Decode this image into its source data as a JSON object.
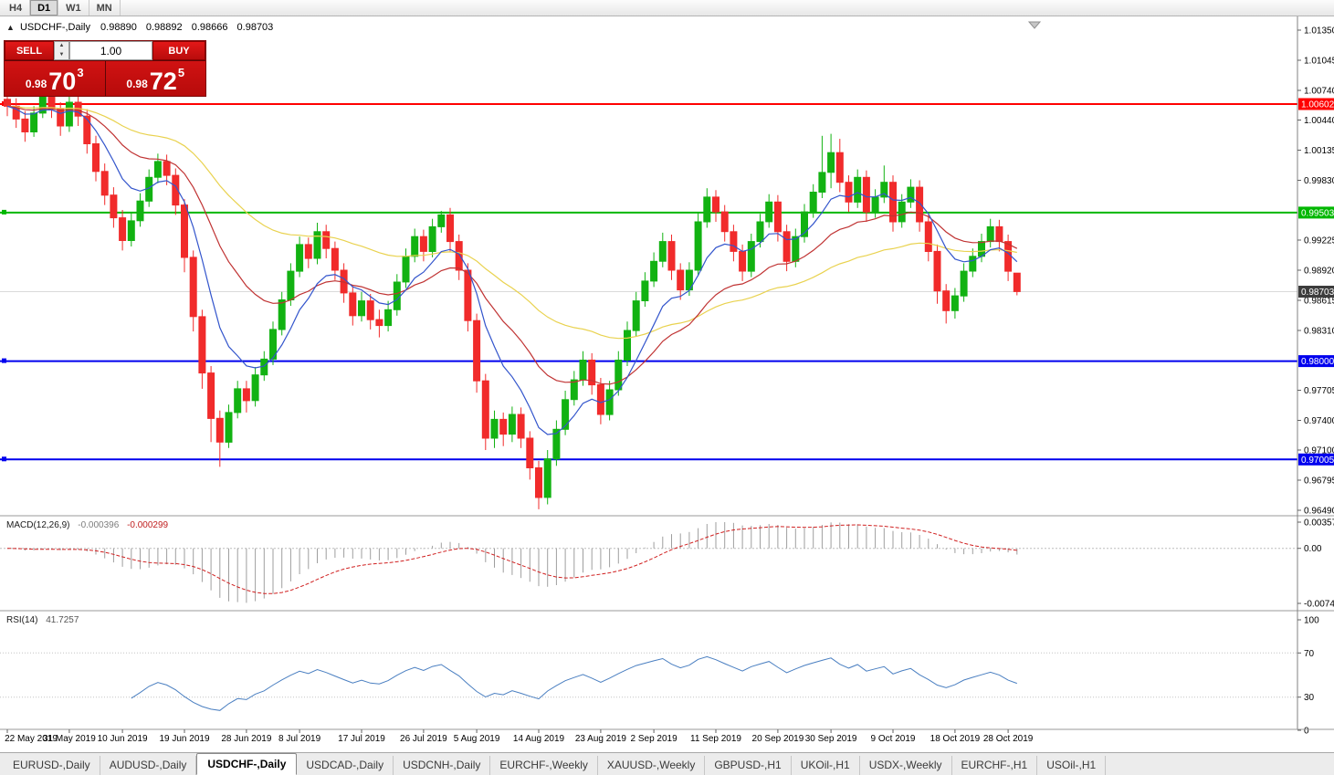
{
  "window": {
    "timeframes": [
      "H4",
      "D1",
      "W1",
      "MN"
    ],
    "active_timeframe": "D1"
  },
  "chart": {
    "title": "USDCHF-,Daily",
    "ohlc": {
      "open": "0.98890",
      "high": "0.98892",
      "low": "0.98666",
      "close": "0.98703"
    }
  },
  "trade_widget": {
    "sell_label": "SELL",
    "buy_label": "BUY",
    "volume": "1.00",
    "sell_price": {
      "small": "0.98",
      "big": "70",
      "sup": "3"
    },
    "buy_price": {
      "small": "0.98",
      "big": "72",
      "sup": "5"
    }
  },
  "levels": [
    {
      "price": 1.00602,
      "label": "1.00602",
      "color": "#ff0000"
    },
    {
      "price": 0.99503,
      "label": "0.99503",
      "color": "#00b700"
    },
    {
      "price": 0.98,
      "label": "0.98000",
      "color": "#0000ee"
    },
    {
      "price": 0.97005,
      "label": "0.97005",
      "color": "#0000ee"
    }
  ],
  "current_price": {
    "value": 0.98703,
    "label": "0.98703",
    "badge_color": "#3c3c3c"
  },
  "price_axis": {
    "ticks": [
      "1.01350",
      "1.01045",
      "1.00740",
      "1.00440",
      "1.00135",
      "0.99830",
      "0.99225",
      "0.98920",
      "0.98615",
      "0.98310",
      "0.97705",
      "0.97400",
      "0.97100",
      "0.96795",
      "0.96490"
    ]
  },
  "macd_panel": {
    "label": "MACD(12,26,9)",
    "value_main": "-0.000396",
    "value_signal": "-0.000299",
    "axis": [
      "0.003574",
      "0.00",
      "-0.00749"
    ],
    "scale_max": 0.003574,
    "scale_min": -0.00749,
    "fast": 12,
    "slow": 26,
    "signal": 9
  },
  "rsi_panel": {
    "label": "RSI(14)",
    "value": "41.7257",
    "axis": [
      "100",
      "70",
      "30",
      "0"
    ],
    "levels": [
      70,
      30
    ],
    "period": 14
  },
  "time_axis": {
    "labels": [
      {
        "text": "22 May 2019",
        "bar": 0
      },
      {
        "text": "31 May 2019",
        "bar": 7
      },
      {
        "text": "10 Jun 2019",
        "bar": 13
      },
      {
        "text": "19 Jun 2019",
        "bar": 20
      },
      {
        "text": "28 Jun 2019",
        "bar": 27
      },
      {
        "text": "8 Jul 2019",
        "bar": 33
      },
      {
        "text": "17 Jul 2019",
        "bar": 40
      },
      {
        "text": "26 Jul 2019",
        "bar": 47
      },
      {
        "text": "5 Aug 2019",
        "bar": 53
      },
      {
        "text": "14 Aug 2019",
        "bar": 60
      },
      {
        "text": "23 Aug 2019",
        "bar": 67
      },
      {
        "text": "2 Sep 2019",
        "bar": 73
      },
      {
        "text": "11 Sep 2019",
        "bar": 80
      },
      {
        "text": "20 Sep 2019",
        "bar": 87
      },
      {
        "text": "30 Sep 2019",
        "bar": 93
      },
      {
        "text": "9 Oct 2019",
        "bar": 100
      },
      {
        "text": "18 Oct 2019",
        "bar": 107
      },
      {
        "text": "28 Oct 2019",
        "bar": 113
      }
    ]
  },
  "tabs": [
    {
      "label": "EURUSD-,Daily",
      "active": false
    },
    {
      "label": "AUDUSD-,Daily",
      "active": false
    },
    {
      "label": "USDCHF-,Daily",
      "active": true
    },
    {
      "label": "USDCAD-,Daily",
      "active": false
    },
    {
      "label": "USDCNH-,Daily",
      "active": false
    },
    {
      "label": "EURCHF-,Weekly",
      "active": false
    },
    {
      "label": "XAUUSD-,Weekly",
      "active": false
    },
    {
      "label": "GBPUSD-,H1",
      "active": false
    },
    {
      "label": "UKOil-,H1",
      "active": false
    },
    {
      "label": "USDX-,Weekly",
      "active": false
    },
    {
      "label": "EURCHF-,H1",
      "active": false
    },
    {
      "label": "USOil-,H1",
      "active": false
    }
  ],
  "chart_data": {
    "type": "candlestick",
    "symbol": "USDCHF",
    "timeframe": "Daily",
    "price_range": [
      0.9649,
      1.0135
    ],
    "colors": {
      "bull": "#12b212",
      "bear": "#f12b2b",
      "ma_fast": "#3355cc",
      "ma_mid": "#c03333",
      "ma_slow": "#e9d24f"
    },
    "overlays": [
      {
        "type": "ema",
        "period": 45,
        "color": "#e9d24f"
      },
      {
        "type": "ema",
        "period": 20,
        "color": "#c03333"
      },
      {
        "type": "ema",
        "period": 8,
        "color": "#3355cc"
      }
    ],
    "candles": [
      [
        1.0065,
        1.0072,
        1.0048,
        1.0058
      ],
      [
        1.0058,
        1.0066,
        1.0036,
        1.0045
      ],
      [
        1.0045,
        1.0053,
        1.0022,
        1.0032
      ],
      [
        1.0032,
        1.0058,
        1.0027,
        1.0051
      ],
      [
        1.0051,
        1.0078,
        1.0046,
        1.0068
      ],
      [
        1.0068,
        1.0076,
        1.0046,
        1.0055
      ],
      [
        1.0055,
        1.0062,
        1.0028,
        1.0038
      ],
      [
        1.0038,
        1.007,
        1.0032,
        1.0062
      ],
      [
        1.0062,
        1.007,
        1.0038,
        1.0048
      ],
      [
        1.0048,
        1.0055,
        1.001,
        1.002
      ],
      [
        1.002,
        1.0028,
        0.9982,
        0.9992
      ],
      [
        0.9992,
        1.0,
        0.9958,
        0.9968
      ],
      [
        0.9968,
        0.9976,
        0.9935,
        0.9945
      ],
      [
        0.9945,
        0.9953,
        0.9912,
        0.9922
      ],
      [
        0.9922,
        0.995,
        0.9916,
        0.9942
      ],
      [
        0.9942,
        0.997,
        0.9936,
        0.9962
      ],
      [
        0.9962,
        0.9994,
        0.9956,
        0.9986
      ],
      [
        0.9986,
        1.001,
        0.998,
        1.0002
      ],
      [
        1.0002,
        1.0009,
        0.9978,
        0.9988
      ],
      [
        0.9988,
        0.9995,
        0.9948,
        0.9958
      ],
      [
        0.9958,
        0.9964,
        0.989,
        0.9905
      ],
      [
        0.9905,
        0.9912,
        0.983,
        0.9845
      ],
      [
        0.9845,
        0.9852,
        0.9772,
        0.9788
      ],
      [
        0.9788,
        0.9795,
        0.9718,
        0.9742
      ],
      [
        0.9742,
        0.975,
        0.9693,
        0.9718
      ],
      [
        0.9718,
        0.9756,
        0.9712,
        0.9748
      ],
      [
        0.9748,
        0.978,
        0.9742,
        0.9772
      ],
      [
        0.9772,
        0.978,
        0.9748,
        0.976
      ],
      [
        0.976,
        0.9794,
        0.9754,
        0.9786
      ],
      [
        0.9786,
        0.981,
        0.978,
        0.9802
      ],
      [
        0.9802,
        0.984,
        0.9796,
        0.9832
      ],
      [
        0.9832,
        0.987,
        0.9826,
        0.9862
      ],
      [
        0.9862,
        0.9899,
        0.9856,
        0.9891
      ],
      [
        0.9891,
        0.9926,
        0.9885,
        0.9918
      ],
      [
        0.9918,
        0.9925,
        0.9894,
        0.9904
      ],
      [
        0.9904,
        0.994,
        0.9898,
        0.9931
      ],
      [
        0.9931,
        0.9938,
        0.9904,
        0.9914
      ],
      [
        0.9914,
        0.9921,
        0.9882,
        0.9892
      ],
      [
        0.9892,
        0.9899,
        0.9859,
        0.9869
      ],
      [
        0.9869,
        0.9876,
        0.9836,
        0.9846
      ],
      [
        0.9846,
        0.987,
        0.984,
        0.9861
      ],
      [
        0.9861,
        0.9868,
        0.9832,
        0.9842
      ],
      [
        0.9842,
        0.9852,
        0.9824,
        0.9836
      ],
      [
        0.9836,
        0.9861,
        0.983,
        0.9852
      ],
      [
        0.9852,
        0.9888,
        0.9846,
        0.988
      ],
      [
        0.988,
        0.9914,
        0.9874,
        0.9906
      ],
      [
        0.9906,
        0.9934,
        0.99,
        0.9926
      ],
      [
        0.9926,
        0.9933,
        0.9901,
        0.9911
      ],
      [
        0.9911,
        0.9944,
        0.9905,
        0.9936
      ],
      [
        0.9936,
        0.9952,
        0.993,
        0.9948
      ],
      [
        0.9948,
        0.9955,
        0.9911,
        0.9921
      ],
      [
        0.9921,
        0.9928,
        0.9882,
        0.9892
      ],
      [
        0.9892,
        0.9899,
        0.983,
        0.9841
      ],
      [
        0.9841,
        0.9848,
        0.9768,
        0.978
      ],
      [
        0.978,
        0.9787,
        0.971,
        0.9722
      ],
      [
        0.9722,
        0.975,
        0.9712,
        0.9741
      ],
      [
        0.9741,
        0.9748,
        0.9714,
        0.9726
      ],
      [
        0.9726,
        0.9754,
        0.9718,
        0.9746
      ],
      [
        0.9746,
        0.9753,
        0.9712,
        0.9722
      ],
      [
        0.9722,
        0.9729,
        0.968,
        0.9692
      ],
      [
        0.9692,
        0.9699,
        0.965,
        0.9662
      ],
      [
        0.9662,
        0.971,
        0.9655,
        0.9701
      ],
      [
        0.9701,
        0.974,
        0.9694,
        0.9731
      ],
      [
        0.9731,
        0.977,
        0.9725,
        0.9761
      ],
      [
        0.9761,
        0.979,
        0.9755,
        0.9781
      ],
      [
        0.9781,
        0.981,
        0.9775,
        0.9801
      ],
      [
        0.9801,
        0.9808,
        0.9766,
        0.9776
      ],
      [
        0.9776,
        0.9783,
        0.9736,
        0.9746
      ],
      [
        0.9746,
        0.978,
        0.974,
        0.9771
      ],
      [
        0.9771,
        0.981,
        0.9765,
        0.9801
      ],
      [
        0.9801,
        0.984,
        0.9795,
        0.9831
      ],
      [
        0.9831,
        0.987,
        0.9825,
        0.9861
      ],
      [
        0.9861,
        0.989,
        0.9855,
        0.9881
      ],
      [
        0.9881,
        0.991,
        0.9875,
        0.9901
      ],
      [
        0.9901,
        0.993,
        0.9895,
        0.9921
      ],
      [
        0.9921,
        0.9928,
        0.9882,
        0.9892
      ],
      [
        0.9892,
        0.9899,
        0.9862,
        0.9872
      ],
      [
        0.9872,
        0.99,
        0.9866,
        0.9892
      ],
      [
        0.9892,
        0.995,
        0.9886,
        0.9941
      ],
      [
        0.9941,
        0.9975,
        0.9935,
        0.9966
      ],
      [
        0.9966,
        0.9973,
        0.9941,
        0.9951
      ],
      [
        0.9951,
        0.9958,
        0.9921,
        0.9931
      ],
      [
        0.9931,
        0.9938,
        0.9901,
        0.9911
      ],
      [
        0.9911,
        0.9918,
        0.9881,
        0.9891
      ],
      [
        0.9891,
        0.9929,
        0.9885,
        0.9921
      ],
      [
        0.9921,
        0.9949,
        0.9915,
        0.9941
      ],
      [
        0.9941,
        0.9969,
        0.9935,
        0.9961
      ],
      [
        0.9961,
        0.9968,
        0.9921,
        0.9931
      ],
      [
        0.9931,
        0.9938,
        0.9891,
        0.9901
      ],
      [
        0.9901,
        0.9934,
        0.9895,
        0.9926
      ],
      [
        0.9926,
        0.9959,
        0.992,
        0.9951
      ],
      [
        0.9951,
        0.9979,
        0.9945,
        0.9971
      ],
      [
        0.9971,
        1.0028,
        0.9965,
        0.9991
      ],
      [
        0.9991,
        1.003,
        0.9975,
        1.0011
      ],
      [
        1.0011,
        1.0025,
        0.9971,
        0.9981
      ],
      [
        0.9981,
        0.9988,
        0.9951,
        0.9961
      ],
      [
        0.9961,
        0.9994,
        0.9955,
        0.9986
      ],
      [
        0.9986,
        0.9993,
        0.9941,
        0.9951
      ],
      [
        0.9951,
        0.9974,
        0.9945,
        0.9966
      ],
      [
        0.9966,
        0.9998,
        0.996,
        0.9981
      ],
      [
        0.9981,
        0.9988,
        0.9931,
        0.9941
      ],
      [
        0.9941,
        0.9969,
        0.9935,
        0.9961
      ],
      [
        0.9961,
        0.9984,
        0.9955,
        0.9976
      ],
      [
        0.9976,
        0.9983,
        0.9931,
        0.9941
      ],
      [
        0.9941,
        0.9948,
        0.9901,
        0.9911
      ],
      [
        0.9911,
        0.9918,
        0.9858,
        0.9871
      ],
      [
        0.9871,
        0.9878,
        0.9838,
        0.9851
      ],
      [
        0.9851,
        0.9874,
        0.9843,
        0.9866
      ],
      [
        0.9866,
        0.9899,
        0.986,
        0.9891
      ],
      [
        0.9891,
        0.9914,
        0.9885,
        0.9906
      ],
      [
        0.9906,
        0.9929,
        0.99,
        0.9921
      ],
      [
        0.9921,
        0.9944,
        0.9915,
        0.9936
      ],
      [
        0.9936,
        0.9943,
        0.9911,
        0.9921
      ],
      [
        0.9921,
        0.9928,
        0.9881,
        0.9891
      ],
      [
        0.9889,
        0.98892,
        0.98666,
        0.98703
      ]
    ]
  }
}
